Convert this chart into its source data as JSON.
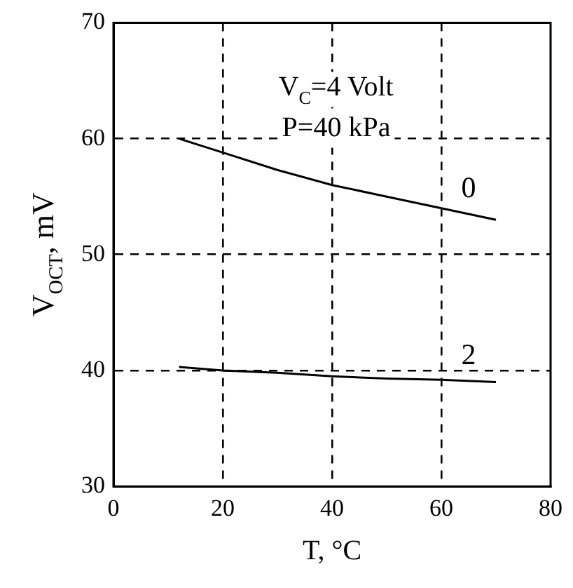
{
  "chart_data": {
    "type": "line",
    "xlabel": "T, °C",
    "ylabel": "V$_{OCT}$, mV",
    "annotations": [
      "V$_{C}$=4 Volt",
      "P=40 kPa"
    ],
    "series": [
      {
        "name": "0",
        "color": "#000000",
        "x": [
          12,
          20,
          30,
          40,
          50,
          60,
          70
        ],
        "values": [
          60,
          58.8,
          57.3,
          56,
          55,
          54,
          53
        ]
      },
      {
        "name": "2",
        "color": "#000000",
        "x": [
          12,
          20,
          30,
          40,
          50,
          60,
          70
        ],
        "values": [
          40.3,
          40,
          39.8,
          39.5,
          39.3,
          39.2,
          39
        ]
      }
    ],
    "xlim": [
      0,
      80
    ],
    "xticks": [
      0,
      20,
      40,
      60,
      80
    ],
    "ylim": [
      30,
      70
    ],
    "yticks": [
      30,
      40,
      50,
      60,
      70
    ],
    "grid": true,
    "legend": false,
    "marker": "none",
    "line_style": "solid"
  }
}
